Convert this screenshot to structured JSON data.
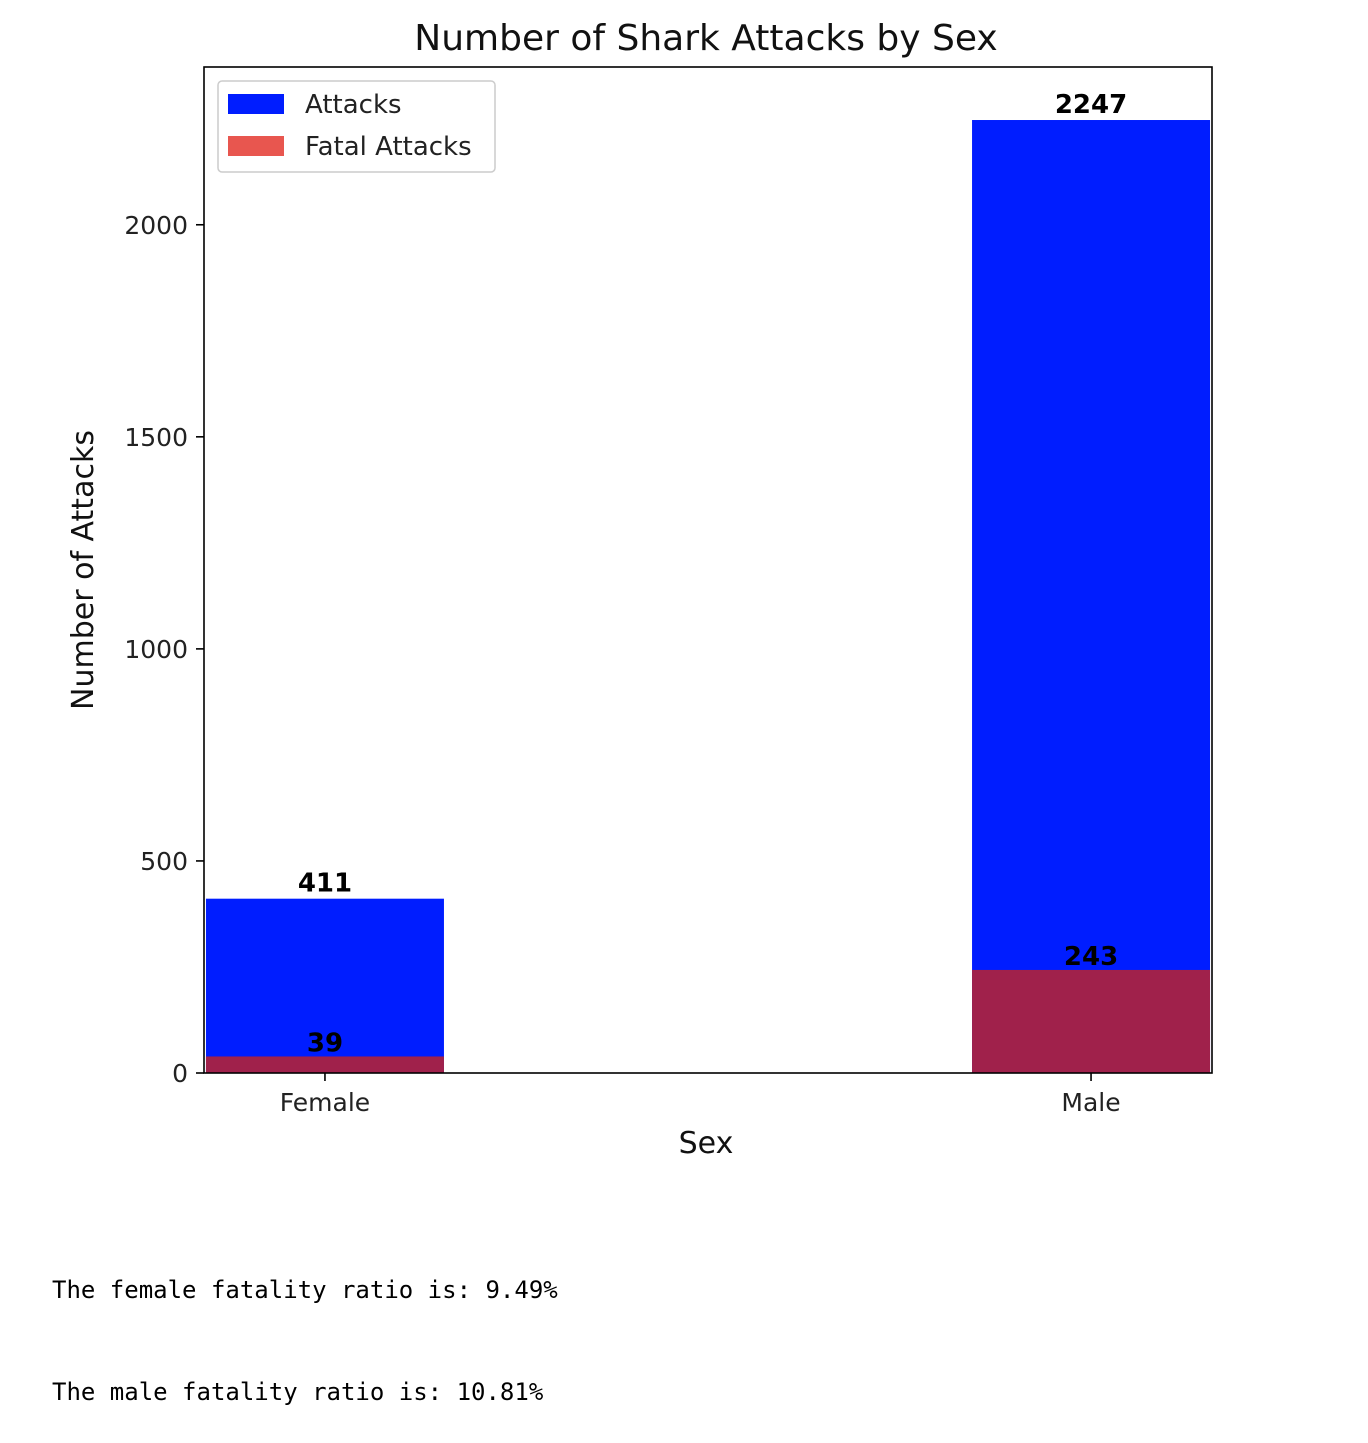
{
  "chart_data": {
    "type": "bar",
    "title": "Number of Shark Attacks by Sex",
    "xlabel": "Sex",
    "ylabel": "Number of Attacks",
    "categories": [
      "Female",
      "Male"
    ],
    "series": [
      {
        "name": "Attacks",
        "values": [
          411,
          2247
        ],
        "color": "#001dff"
      },
      {
        "name": "Fatal Attacks",
        "values": [
          39,
          243
        ],
        "color": "#e8564f",
        "overlay_color": "#a0214b"
      }
    ],
    "ylim": [
      0,
      2372
    ],
    "yticks": [
      0,
      500,
      1000,
      1500,
      2000
    ],
    "legend_position": "top-left",
    "grid": false
  },
  "output": {
    "lines": [
      "The female fatality ratio is: 9.49%",
      "The male fatality ratio is: 10.81%"
    ]
  }
}
